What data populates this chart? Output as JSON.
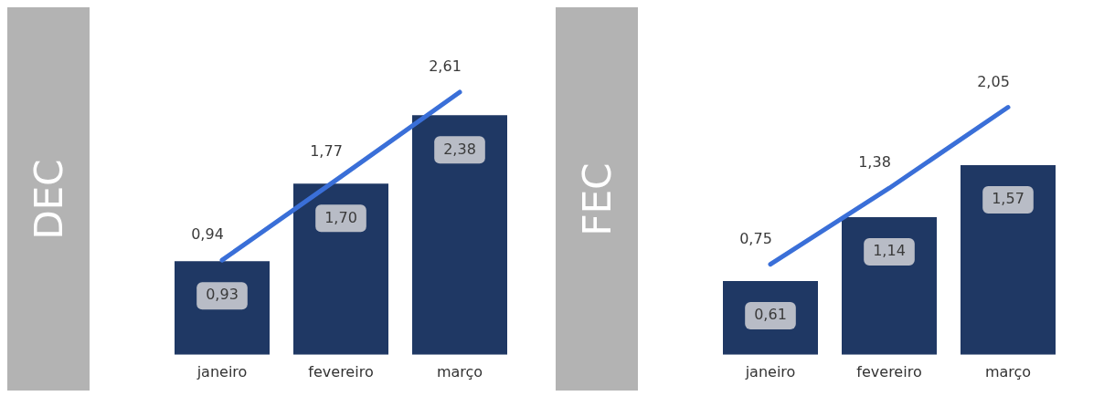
{
  "chart_data": [
    {
      "type": "bar",
      "ylabel": "DEC",
      "categories": [
        "janeiro",
        "fevereiro",
        "março"
      ],
      "legend": false,
      "grid": false,
      "series": [
        {
          "color": "#1f3864",
          "values": [
            0.93,
            1.7,
            2.38
          ],
          "value_labels": [
            "0,93",
            "1,70",
            "2,38"
          ]
        },
        {
          "type": "line",
          "color": "#3a6fd8",
          "values": [
            0.94,
            1.77,
            2.61
          ],
          "value_labels": [
            "0,94",
            "1,77",
            "2,61"
          ]
        }
      ]
    },
    {
      "type": "bar",
      "ylabel": "FEC",
      "categories": [
        "janeiro",
        "fevereiro",
        "março"
      ],
      "legend": false,
      "grid": false,
      "series": [
        {
          "color": "#1f3864",
          "values": [
            0.61,
            1.14,
            1.57
          ],
          "value_labels": [
            "0,61",
            "1,14",
            "1,57"
          ]
        },
        {
          "type": "line",
          "color": "#3a6fd8",
          "values": [
            0.75,
            1.38,
            2.05
          ],
          "value_labels": [
            "0,75",
            "1,38",
            "2,05"
          ]
        }
      ]
    }
  ]
}
